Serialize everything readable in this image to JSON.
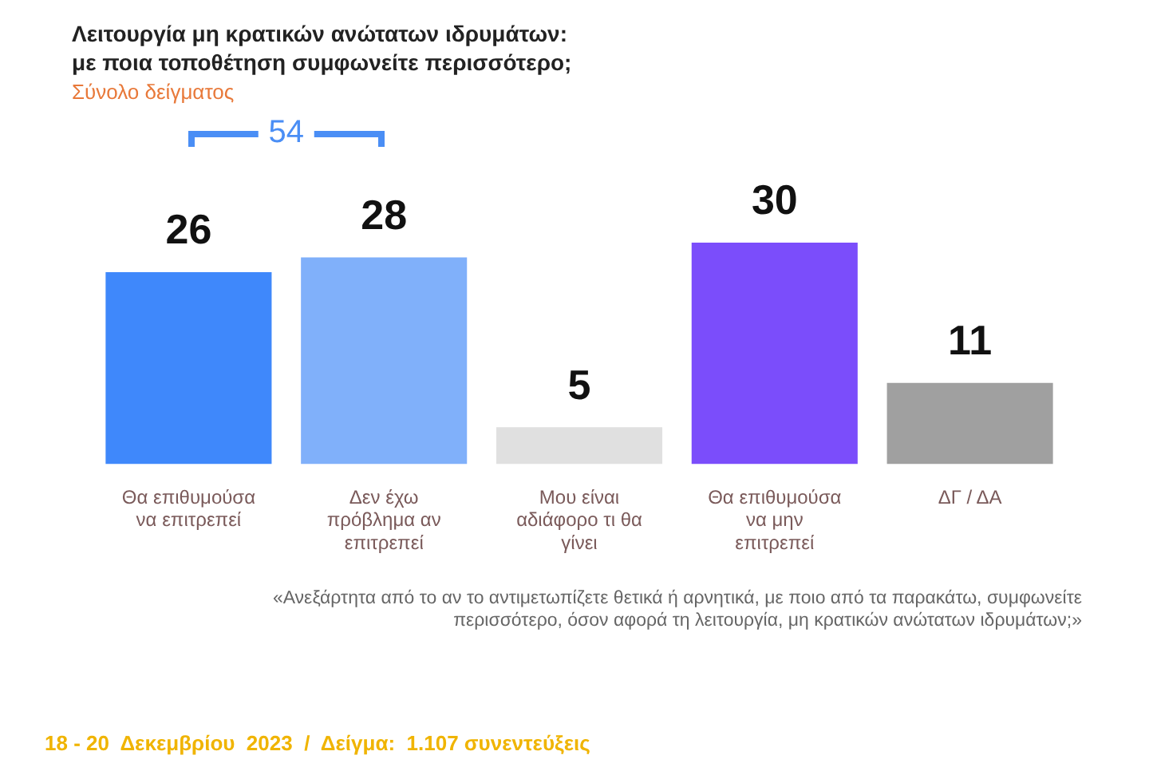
{
  "chart_data": {
    "type": "bar",
    "title": "Λειτουργία μη κρατικών ανώτατων ιδρυμάτων:\nμε ποια τοποθέτηση συμφωνείτε περισσότερο;",
    "subtitle": "Σύνολο δείγματος",
    "categories": [
      "Θα επιθυμούσα να επιτρεπεί",
      "Δεν έχω πρόβλημα αν επιτρεπεί",
      "Μου είναι αδιάφορο τι θα γίνει",
      "Θα επιθυμούσα να μην επιτρεπεί",
      "ΔΓ / ΔΑ"
    ],
    "values": [
      26,
      28,
      5,
      30,
      11
    ],
    "colors": [
      "#3f88fb",
      "#80b0fa",
      "#e0e0e0",
      "#7b4dfb",
      "#a0a0a0"
    ],
    "data_labels": true,
    "grid": false,
    "legend": false,
    "tick_labels": "x",
    "annotations": [
      "54",
      "«Ανεξάρτητα από το αν το αντιμετωπίζετε θετικά ή αρνητικά, με ποιο από τα παρακάτω, συμφωνείτε περισσότερο, όσον αφορά τη λειτουργία, μη κρατικών ανώτατων ιδρυμάτων;»",
      "18 - 20  Δεκεμβρίου  2023  /  Δείγμα:  1.107 συνεντεύξεις"
    ]
  }
}
